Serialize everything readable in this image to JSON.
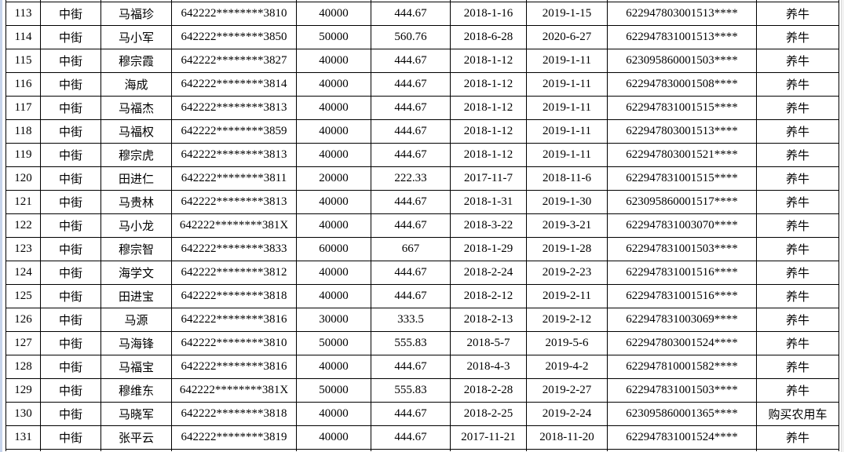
{
  "colors": {
    "background": "#ffffff",
    "left_strip": "#c7d4eb",
    "table_border": "#000000",
    "text": "#000000"
  },
  "table": {
    "rows": [
      {
        "no": "113",
        "town": "中街",
        "name": "马福珍",
        "id_number": "642222********3810",
        "amount": "40000",
        "interest": "444.67",
        "start_date": "2018-1-16",
        "end_date": "2019-1-15",
        "card_number": "622947803001513****",
        "purpose": "养牛"
      },
      {
        "no": "114",
        "town": "中街",
        "name": "马小军",
        "id_number": "642222********3850",
        "amount": "50000",
        "interest": "560.76",
        "start_date": "2018-6-28",
        "end_date": "2020-6-27",
        "card_number": "622947831001513****",
        "purpose": "养牛"
      },
      {
        "no": "115",
        "town": "中街",
        "name": "穆宗霞",
        "id_number": "642222********3827",
        "amount": "40000",
        "interest": "444.67",
        "start_date": "2018-1-12",
        "end_date": "2019-1-11",
        "card_number": "623095860001503****",
        "purpose": "养牛"
      },
      {
        "no": "116",
        "town": "中街",
        "name": "海成",
        "id_number": "642222********3814",
        "amount": "40000",
        "interest": "444.67",
        "start_date": "2018-1-12",
        "end_date": "2019-1-11",
        "card_number": "622947830001508****",
        "purpose": "养牛"
      },
      {
        "no": "117",
        "town": "中街",
        "name": "马福杰",
        "id_number": "642222********3813",
        "amount": "40000",
        "interest": "444.67",
        "start_date": "2018-1-12",
        "end_date": "2019-1-11",
        "card_number": "622947831001515****",
        "purpose": "养牛"
      },
      {
        "no": "118",
        "town": "中街",
        "name": "马福权",
        "id_number": "642222********3859",
        "amount": "40000",
        "interest": "444.67",
        "start_date": "2018-1-12",
        "end_date": "2019-1-11",
        "card_number": "622947803001513****",
        "purpose": "养牛"
      },
      {
        "no": "119",
        "town": "中街",
        "name": "穆宗虎",
        "id_number": "642222********3813",
        "amount": "40000",
        "interest": "444.67",
        "start_date": "2018-1-12",
        "end_date": "2019-1-11",
        "card_number": "622947803001521****",
        "purpose": "养牛"
      },
      {
        "no": "120",
        "town": "中街",
        "name": "田进仁",
        "id_number": "642222********3811",
        "amount": "20000",
        "interest": "222.33",
        "start_date": "2017-11-7",
        "end_date": "2018-11-6",
        "card_number": "622947831001515****",
        "purpose": "养牛"
      },
      {
        "no": "121",
        "town": "中街",
        "name": "马贵林",
        "id_number": "642222********3813",
        "amount": "40000",
        "interest": "444.67",
        "start_date": "2018-1-31",
        "end_date": "2019-1-30",
        "card_number": "623095860001517****",
        "purpose": "养牛"
      },
      {
        "no": "122",
        "town": "中街",
        "name": "马小龙",
        "id_number": "642222********381X",
        "amount": "40000",
        "interest": "444.67",
        "start_date": "2018-3-22",
        "end_date": "2019-3-21",
        "card_number": "622947831003070****",
        "purpose": "养牛"
      },
      {
        "no": "123",
        "town": "中街",
        "name": "穆宗智",
        "id_number": "642222********3833",
        "amount": "60000",
        "interest": "667",
        "start_date": "2018-1-29",
        "end_date": "2019-1-28",
        "card_number": "622947831001503****",
        "purpose": "养牛"
      },
      {
        "no": "124",
        "town": "中街",
        "name": "海学文",
        "id_number": "642222********3812",
        "amount": "40000",
        "interest": "444.67",
        "start_date": "2018-2-24",
        "end_date": "2019-2-23",
        "card_number": "622947831001516****",
        "purpose": "养牛"
      },
      {
        "no": "125",
        "town": "中街",
        "name": "田进宝",
        "id_number": "642222********3818",
        "amount": "40000",
        "interest": "444.67",
        "start_date": "2018-2-12",
        "end_date": "2019-2-11",
        "card_number": "622947831001516****",
        "purpose": "养牛"
      },
      {
        "no": "126",
        "town": "中街",
        "name": "马源",
        "id_number": "642222********3816",
        "amount": "30000",
        "interest": "333.5",
        "start_date": "2018-2-13",
        "end_date": "2019-2-12",
        "card_number": "622947831003069****",
        "purpose": "养牛"
      },
      {
        "no": "127",
        "town": "中街",
        "name": "马海锋",
        "id_number": "642222********3810",
        "amount": "50000",
        "interest": "555.83",
        "start_date": "2018-5-7",
        "end_date": "2019-5-6",
        "card_number": "622947803001524****",
        "purpose": "养牛"
      },
      {
        "no": "128",
        "town": "中街",
        "name": "马福宝",
        "id_number": "642222********3816",
        "amount": "40000",
        "interest": "444.67",
        "start_date": "2018-4-3",
        "end_date": "2019-4-2",
        "card_number": "622947810001582****",
        "purpose": "养牛"
      },
      {
        "no": "129",
        "town": "中街",
        "name": "穆维东",
        "id_number": "642222********381X",
        "amount": "50000",
        "interest": "555.83",
        "start_date": "2018-2-28",
        "end_date": "2019-2-27",
        "card_number": "622947831001503****",
        "purpose": "养牛"
      },
      {
        "no": "130",
        "town": "中街",
        "name": "马晓军",
        "id_number": "642222********3818",
        "amount": "40000",
        "interest": "444.67",
        "start_date": "2018-2-25",
        "end_date": "2019-2-24",
        "card_number": "623095860001365****",
        "purpose": "购买农用车"
      },
      {
        "no": "131",
        "town": "中街",
        "name": "张平云",
        "id_number": "642222********3819",
        "amount": "40000",
        "interest": "444.67",
        "start_date": "2017-11-21",
        "end_date": "2018-11-20",
        "card_number": "622947831001524****",
        "purpose": "养牛"
      }
    ]
  }
}
